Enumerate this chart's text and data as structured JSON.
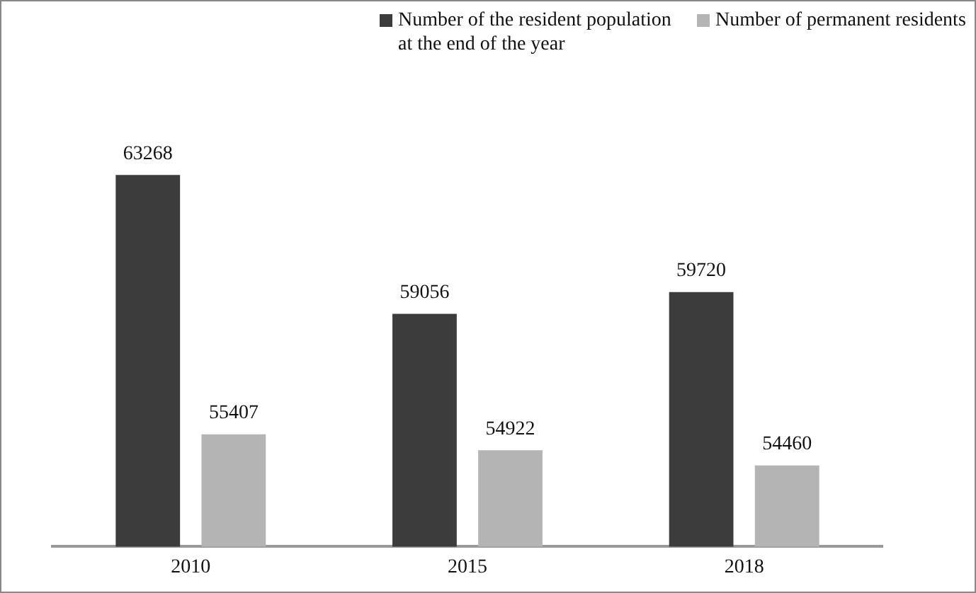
{
  "chart_data": {
    "type": "bar",
    "categories": [
      "2010",
      "2015",
      "2018"
    ],
    "series": [
      {
        "name": "Number of the resident population at the end of the year",
        "color": "#3c3c3c",
        "values": [
          63268,
          59056,
          59720
        ]
      },
      {
        "name": "Number of permanent residents",
        "color": "#b4b4b4",
        "values": [
          55407,
          54922,
          54460
        ]
      }
    ],
    "tick_labels": "x",
    "data_labels": true,
    "legend": "top",
    "grid": false
  }
}
